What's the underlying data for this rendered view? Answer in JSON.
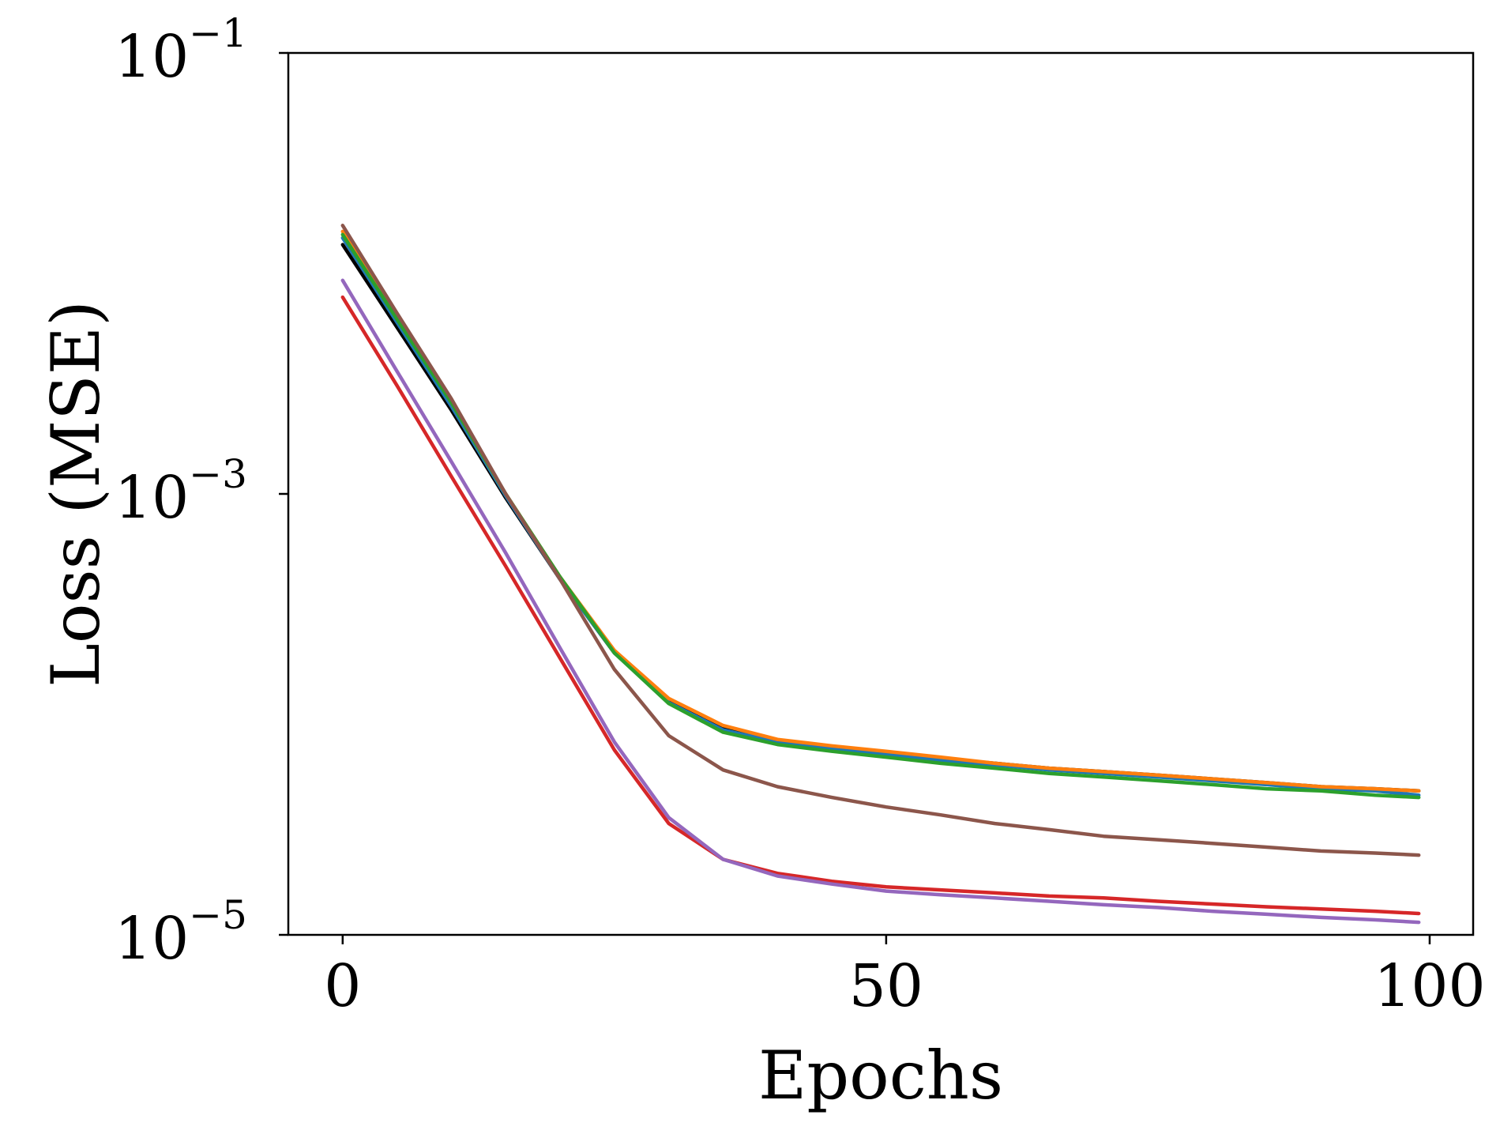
{
  "chart_data": {
    "type": "line",
    "title": "",
    "xlabel": "Epochs",
    "ylabel": "Loss (MSE)",
    "xlim": [
      -5,
      104
    ],
    "ylim": [
      1e-05,
      0.1
    ],
    "yscale": "log",
    "grid": false,
    "x_ticks": [
      {
        "value": 0,
        "label": "0"
      },
      {
        "value": 50,
        "label": "50"
      },
      {
        "value": 100,
        "label": "100"
      }
    ],
    "y_ticks": [
      {
        "value": 0.1,
        "base": "10",
        "exp": "−1"
      },
      {
        "value": 0.001,
        "base": "10",
        "exp": "−3"
      },
      {
        "value": 1e-05,
        "base": "10",
        "exp": "−5"
      }
    ],
    "x": [
      0,
      5,
      10,
      15,
      20,
      25,
      30,
      35,
      40,
      45,
      50,
      55,
      60,
      65,
      70,
      75,
      80,
      85,
      90,
      95,
      99
    ],
    "series": [
      {
        "name": "black",
        "color": "#000000",
        "values": [
          0.0135,
          0.0057,
          0.0024,
          0.00096,
          0.00041,
          0.00019,
          0.000115,
          8.6e-05,
          7.6e-05,
          7.1e-05,
          6.7e-05,
          6.3e-05,
          6e-05,
          5.7e-05,
          5.5e-05,
          5.3e-05,
          5.1e-05,
          4.9e-05,
          4.7e-05,
          4.6e-05,
          4.5e-05
        ]
      },
      {
        "name": "blue",
        "color": "#1f77b4",
        "values": [
          0.0145,
          0.006,
          0.0025,
          0.00098,
          0.00041,
          0.00019,
          0.000113,
          8.5e-05,
          7.5e-05,
          7e-05,
          6.6e-05,
          6.2e-05,
          5.9e-05,
          5.6e-05,
          5.4e-05,
          5.2e-05,
          5e-05,
          4.8e-05,
          4.6e-05,
          4.5e-05,
          4.3e-05
        ]
      },
      {
        "name": "orange",
        "color": "#ff7f0e",
        "values": [
          0.0155,
          0.0063,
          0.0026,
          0.001,
          0.00042,
          0.000195,
          0.000118,
          8.9e-05,
          7.7e-05,
          7.2e-05,
          6.8e-05,
          6.4e-05,
          6e-05,
          5.7e-05,
          5.5e-05,
          5.3e-05,
          5.1e-05,
          4.9e-05,
          4.7e-05,
          4.6e-05,
          4.5e-05
        ]
      },
      {
        "name": "green",
        "color": "#2ca02c",
        "values": [
          0.015,
          0.0062,
          0.0026,
          0.001,
          0.00042,
          0.00019,
          0.000112,
          8.3e-05,
          7.3e-05,
          6.8e-05,
          6.4e-05,
          6e-05,
          5.7e-05,
          5.4e-05,
          5.2e-05,
          5e-05,
          4.8e-05,
          4.6e-05,
          4.5e-05,
          4.3e-05,
          4.2e-05
        ]
      },
      {
        "name": "brown",
        "color": "#8c564b",
        "values": [
          0.0165,
          0.0066,
          0.0027,
          0.001,
          0.00041,
          0.00016,
          8e-05,
          5.6e-05,
          4.7e-05,
          4.2e-05,
          3.8e-05,
          3.5e-05,
          3.2e-05,
          3e-05,
          2.8e-05,
          2.7e-05,
          2.6e-05,
          2.5e-05,
          2.4e-05,
          2.35e-05,
          2.3e-05
        ]
      },
      {
        "name": "red",
        "color": "#d62728",
        "values": [
          0.0078,
          0.0031,
          0.0012,
          0.00047,
          0.00018,
          6.9e-05,
          3.2e-05,
          2.2e-05,
          1.9e-05,
          1.75e-05,
          1.65e-05,
          1.6e-05,
          1.55e-05,
          1.5e-05,
          1.47e-05,
          1.42e-05,
          1.38e-05,
          1.34e-05,
          1.31e-05,
          1.28e-05,
          1.25e-05
        ]
      },
      {
        "name": "purple",
        "color": "#9467bd",
        "values": [
          0.0093,
          0.0036,
          0.0014,
          0.00054,
          0.0002,
          7.5e-05,
          3.4e-05,
          2.2e-05,
          1.85e-05,
          1.7e-05,
          1.58e-05,
          1.52e-05,
          1.47e-05,
          1.42e-05,
          1.37e-05,
          1.33e-05,
          1.28e-05,
          1.24e-05,
          1.2e-05,
          1.17e-05,
          1.14e-05
        ]
      }
    ]
  }
}
